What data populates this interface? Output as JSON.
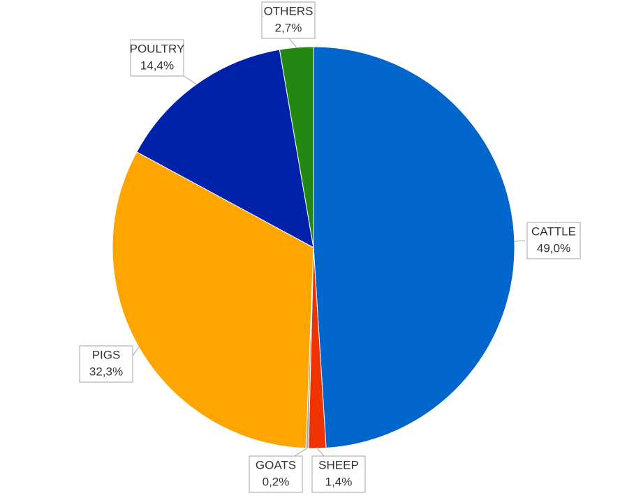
{
  "chart_data": {
    "type": "pie",
    "categories": [
      "CATTLE",
      "SHEEP",
      "GOATS",
      "PIGS",
      "POULTRY",
      "OTHERS"
    ],
    "values": [
      49.0,
      1.4,
      0.2,
      32.3,
      14.4,
      2.7
    ],
    "value_labels": [
      "49,0%",
      "1,4%",
      "0,2%",
      "32,3%",
      "14,4%",
      "2,7%"
    ],
    "colors": [
      "#0066cc",
      "#ee3300",
      "#a6a6a6",
      "#ffa500",
      "#0022aa",
      "#228811"
    ]
  }
}
